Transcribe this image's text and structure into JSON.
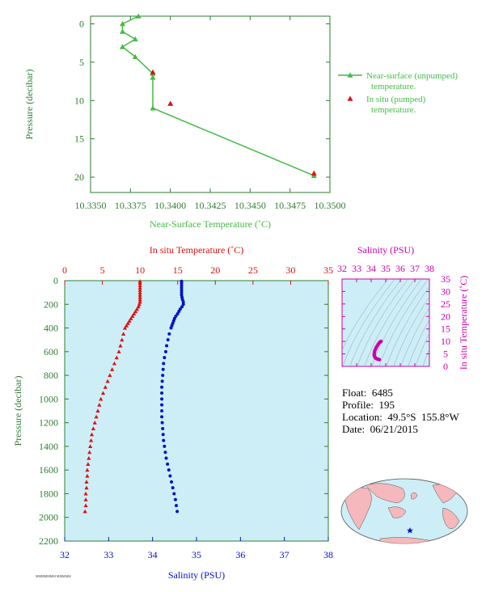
{
  "colors": {
    "near_surface": "#44bb44",
    "insitu": "#dd1111",
    "salinity": "#0011cc",
    "ts_magenta": "#cc00aa",
    "panel_bg": "#cdeef7",
    "frame_green": "#2e7d32",
    "land": "#f4b8bd",
    "ocean": "#cdeef7"
  },
  "info": {
    "float": "Float:  6485",
    "profile": "Profile:  195",
    "location": "Location:  49.5°S  155.8°W",
    "date": "Date:  06/21/2015"
  },
  "tiny_footer": "MMMMMMM MMMMM",
  "chart_data": [
    {
      "type": "line",
      "xlabel": "Near-Surface Temperature (˚C)",
      "ylabel": "Pressure (decibar)",
      "xlim": [
        10.335,
        10.35
      ],
      "ylim": [
        22,
        -1
      ],
      "xticks": [
        "10.3350",
        "10.3375",
        "10.3400",
        "10.3425",
        "10.3450",
        "10.3475",
        "10.3500"
      ],
      "xtick_values": [
        10.335,
        10.3375,
        10.34,
        10.3425,
        10.345,
        10.3475,
        10.35
      ],
      "yticks": [
        0,
        5,
        10,
        15,
        20
      ],
      "legend": "right",
      "series": [
        {
          "name": "Near-surface (unpumped) temperature.",
          "style": "line+triangle",
          "x": [
            10.338,
            10.337,
            10.337,
            10.3378,
            10.337,
            10.3378,
            10.3389,
            10.3389,
            10.3389,
            10.349
          ],
          "y": [
            -1.0,
            0.0,
            1.0,
            2.0,
            3.0,
            4.3,
            6.5,
            7.0,
            11.0,
            19.8
          ]
        },
        {
          "name": "In situ (pumped) temperature.",
          "style": "triangle",
          "x": [
            10.3389,
            10.34,
            10.349
          ],
          "y": [
            6.3,
            10.4,
            19.5
          ]
        }
      ]
    },
    {
      "type": "scatter",
      "title": "In situ Temperature (˚C)",
      "xlabel": "Salinity (PSU)",
      "ylabel": "Pressure (decibar)",
      "ylim": [
        0,
        2200
      ],
      "xlim_salinity": [
        32,
        38
      ],
      "xlim_temperature": [
        0,
        35
      ],
      "yticks": [
        0,
        200,
        400,
        600,
        800,
        1000,
        1200,
        1400,
        1600,
        1800,
        2000,
        2200
      ],
      "salinity_ticks": [
        32,
        33,
        34,
        35,
        36,
        37,
        38
      ],
      "temperature_ticks": [
        0,
        5,
        10,
        15,
        20,
        25,
        30,
        35
      ],
      "series": [
        {
          "name": "In situ Temperature (˚C)",
          "style": "triangle",
          "pressure": [
            5,
            20,
            40,
            60,
            80,
            100,
            120,
            140,
            160,
            180,
            200,
            220,
            240,
            260,
            280,
            300,
            320,
            340,
            360,
            380,
            400,
            450,
            500,
            550,
            600,
            650,
            700,
            750,
            800,
            850,
            900,
            950,
            1000,
            1050,
            1100,
            1150,
            1200,
            1250,
            1300,
            1350,
            1400,
            1450,
            1500,
            1550,
            1600,
            1650,
            1700,
            1750,
            1800,
            1850,
            1900,
            1950
          ],
          "temperature": [
            10.0,
            10.0,
            10.0,
            10.0,
            10.0,
            10.0,
            10.0,
            10.0,
            10.0,
            10.0,
            9.9,
            9.8,
            9.6,
            9.4,
            9.2,
            9.0,
            8.8,
            8.6,
            8.4,
            8.2,
            8.0,
            7.8,
            7.6,
            7.4,
            7.2,
            6.9,
            6.6,
            6.3,
            6.0,
            5.7,
            5.4,
            5.1,
            4.8,
            4.6,
            4.4,
            4.2,
            4.0,
            3.8,
            3.6,
            3.5,
            3.4,
            3.3,
            3.2,
            3.1,
            3.0,
            3.0,
            2.9,
            2.9,
            2.8,
            2.8,
            2.8,
            2.7
          ]
        },
        {
          "name": "Salinity (PSU)",
          "style": "dot",
          "pressure": [
            5,
            20,
            40,
            60,
            80,
            100,
            120,
            140,
            160,
            180,
            200,
            220,
            240,
            260,
            280,
            300,
            320,
            340,
            360,
            380,
            400,
            450,
            500,
            550,
            600,
            650,
            700,
            750,
            800,
            850,
            900,
            950,
            1000,
            1050,
            1100,
            1150,
            1200,
            1250,
            1300,
            1350,
            1400,
            1450,
            1500,
            1550,
            1600,
            1650,
            1700,
            1750,
            1800,
            1850,
            1900,
            1950
          ],
          "salinity": [
            34.66,
            34.66,
            34.66,
            34.66,
            34.66,
            34.66,
            34.66,
            34.67,
            34.68,
            34.7,
            34.7,
            34.67,
            34.63,
            34.6,
            34.57,
            34.53,
            34.5,
            34.48,
            34.46,
            34.44,
            34.42,
            34.38,
            34.35,
            34.32,
            34.3,
            34.27,
            34.25,
            34.24,
            34.23,
            34.22,
            34.21,
            34.21,
            34.21,
            34.21,
            34.21,
            34.21,
            34.22,
            34.23,
            34.24,
            34.25,
            34.27,
            34.29,
            34.31,
            34.34,
            34.37,
            34.4,
            34.43,
            34.46,
            34.49,
            34.52,
            34.54,
            34.56
          ]
        }
      ]
    },
    {
      "type": "scatter",
      "xlabel": "Salinity (PSU)",
      "ylabel": "In situ Temperature (˚C)",
      "xlim": [
        32,
        38
      ],
      "ylim": [
        0,
        35
      ],
      "xticks": [
        32,
        33,
        34,
        35,
        36,
        37,
        38
      ],
      "yticks": [
        0,
        5,
        10,
        15,
        20,
        25,
        30,
        35
      ],
      "series": [
        {
          "name": "T-S",
          "style": "dot",
          "salinity": [
            34.56,
            34.52,
            34.46,
            34.4,
            34.34,
            34.29,
            34.25,
            34.22,
            34.21,
            34.21,
            34.23,
            34.25,
            34.3,
            34.35,
            34.42,
            34.48,
            34.55,
            34.62,
            34.67,
            34.68
          ],
          "temperature": [
            2.7,
            2.8,
            2.9,
            3.0,
            3.2,
            3.4,
            3.8,
            4.2,
            4.6,
            5.1,
            5.7,
            6.3,
            6.9,
            7.6,
            8.2,
            8.8,
            9.4,
            9.8,
            10.0,
            10.0
          ]
        }
      ]
    }
  ]
}
